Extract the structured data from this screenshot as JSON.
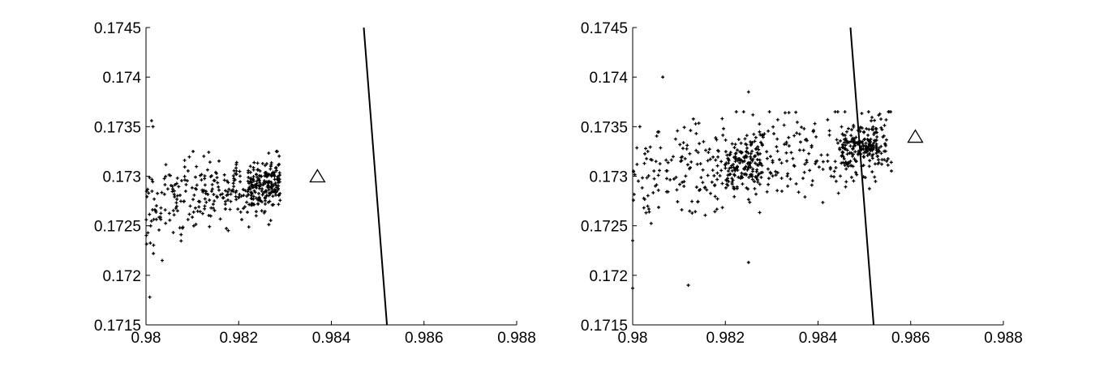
{
  "chart_data": [
    {
      "type": "scatter",
      "xlim": [
        0.98,
        0.988
      ],
      "ylim": [
        0.1715,
        0.1745
      ],
      "xticks": [
        "0.98",
        "0.982",
        "0.984",
        "0.986",
        "0.988"
      ],
      "yticks": [
        "0.1715",
        "0.172",
        "0.1725",
        "0.173",
        "0.1735",
        "0.174",
        "0.1745"
      ],
      "grid": false,
      "boundary_line": [
        [
          0.9847,
          0.1745
        ],
        [
          0.9852,
          0.1715
        ]
      ],
      "triangle_marker": [
        0.9837,
        0.173
      ],
      "point_clusters": [
        {
          "x_range": [
            0.98,
            0.9829
          ],
          "y_range": [
            0.17225,
            0.17325
          ],
          "trend": [
            [
              0.98,
              0.1727
            ],
            [
              0.9829,
              0.17295
            ]
          ],
          "count": 300
        },
        {
          "x_range": [
            0.9822,
            0.9829
          ],
          "y_range": [
            0.1727,
            0.1732
          ],
          "trend": [
            [
              0.9822,
              0.1729
            ],
            [
              0.9829,
              0.17295
            ]
          ],
          "count": 120
        }
      ],
      "outliers": [
        [
          0.98012,
          0.17356
        ],
        [
          0.98015,
          0.1735
        ],
        [
          0.98008,
          0.17178
        ],
        [
          0.98016,
          0.17222
        ],
        [
          0.98035,
          0.17215
        ]
      ]
    },
    {
      "type": "scatter",
      "xlim": [
        0.98,
        0.988
      ],
      "ylim": [
        0.1715,
        0.1745
      ],
      "xticks": [
        "0.98",
        "0.982",
        "0.984",
        "0.986",
        "0.988"
      ],
      "yticks": [
        "0.1715",
        "0.172",
        "0.1725",
        "0.173",
        "0.1735",
        "0.174",
        "0.1745"
      ],
      "grid": false,
      "boundary_line": [
        [
          0.9847,
          0.1745
        ],
        [
          0.9852,
          0.1715
        ]
      ],
      "triangle_marker": [
        0.9861,
        0.1734
      ],
      "point_clusters": [
        {
          "x_range": [
            0.98,
            0.9856
          ],
          "y_range": [
            0.17245,
            0.17365
          ],
          "trend": [
            [
              0.98,
              0.17295
            ],
            [
              0.9856,
              0.17335
            ]
          ],
          "count": 420
        },
        {
          "x_range": [
            0.982,
            0.9828
          ],
          "y_range": [
            0.1728,
            0.1736
          ],
          "trend": [
            [
              0.982,
              0.1731
            ],
            [
              0.9828,
              0.1732
            ]
          ],
          "count": 120
        },
        {
          "x_range": [
            0.9845,
            0.9853
          ],
          "y_range": [
            0.1731,
            0.1737
          ],
          "trend": [
            [
              0.9845,
              0.17325
            ],
            [
              0.9853,
              0.17335
            ]
          ],
          "count": 130
        }
      ],
      "outliers": [
        [
          0.98065,
          0.174
        ],
        [
          0.98,
          0.17187
        ],
        [
          0.9812,
          0.1719
        ],
        [
          0.9825,
          0.17213
        ],
        [
          0.98,
          0.17235
        ],
        [
          0.9825,
          0.17385
        ]
      ]
    }
  ]
}
